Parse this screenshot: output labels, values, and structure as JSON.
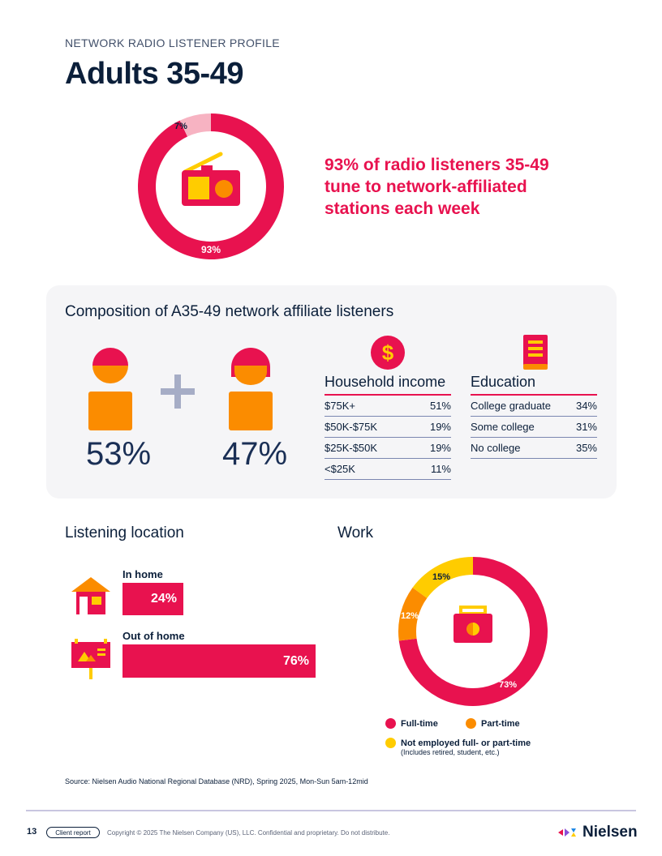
{
  "header": {
    "eyebrow": "NETWORK RADIO LISTENER PROFILE",
    "title": "Adults 35-49"
  },
  "network_share": {
    "headline": "93% of radio listeners 35-49 tune to network-affiliated stations each week",
    "slices": [
      {
        "label": "93%",
        "value": 93,
        "color": "#e8124f"
      },
      {
        "label": "7%",
        "value": 7,
        "color": "#f7b3c2"
      }
    ],
    "icon": "radio-icon"
  },
  "composition": {
    "title": "Composition of A35-49 network affiliate listeners",
    "male_pct": "53%",
    "female_pct": "47%",
    "household_income": {
      "heading": "Household income",
      "rows": [
        {
          "label": "$75K+",
          "value": "51%"
        },
        {
          "label": "$50K-$75K",
          "value": "19%"
        },
        {
          "label": "$25K-$50K",
          "value": "19%"
        },
        {
          "label": "<$25K",
          "value": "11%"
        }
      ]
    },
    "education": {
      "heading": "Education",
      "rows": [
        {
          "label": "College graduate",
          "value": "34%"
        },
        {
          "label": "Some college",
          "value": "31%"
        },
        {
          "label": "No college",
          "value": "35%"
        }
      ]
    }
  },
  "listening_location": {
    "title": "Listening location",
    "items": [
      {
        "label": "In home",
        "value_label": "24%",
        "value": 24
      },
      {
        "label": "Out of home",
        "value_label": "76%",
        "value": 76
      }
    ]
  },
  "work": {
    "title": "Work",
    "slices": [
      {
        "label": "73%",
        "value": 73,
        "color": "#e8124f"
      },
      {
        "label": "12%",
        "value": 12,
        "color": "#fb8c00"
      },
      {
        "label": "15%",
        "value": 15,
        "color": "#ffcc00"
      }
    ],
    "legend": [
      {
        "label": "Full-time",
        "color": "#e8124f"
      },
      {
        "label": "Part-time",
        "color": "#fb8c00"
      },
      {
        "label": "Not employed full- or part-time",
        "color": "#ffcc00",
        "note": "(Includes retired, student, etc.)"
      }
    ]
  },
  "source": "Source: Nielsen Audio National Regional Database (NRD), Spring 2025, Mon-Sun 5am-12mid",
  "footer": {
    "page_number": "13",
    "badge": "Client report",
    "copyright": "Copyright © 2025 The Nielsen Company (US), LLC. Confidential and proprietary. Do not distribute.",
    "logo": "Nielsen"
  }
}
